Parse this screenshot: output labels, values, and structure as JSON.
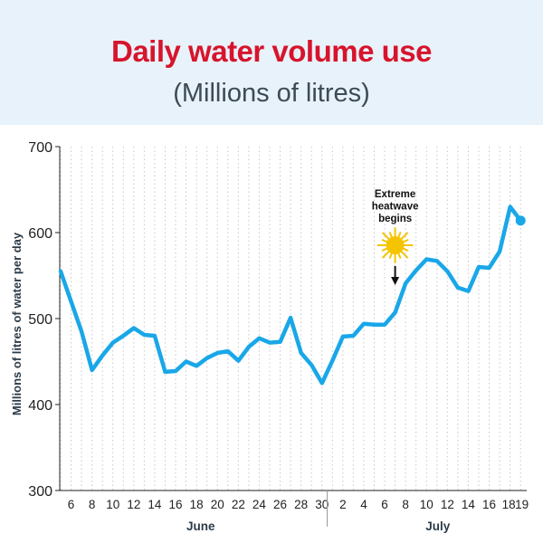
{
  "header": {
    "title": "Daily water volume use",
    "subtitle": "(Millions of litres)"
  },
  "colors": {
    "title": "#d7142c",
    "header_background": "#e8f2fa",
    "line": "#19a7e8",
    "grid": "#c8c8c8",
    "sun": "#f5c400",
    "subtitle": "#3d4b56"
  },
  "chart_data": {
    "type": "line",
    "title": "Daily water volume use",
    "subtitle": "(Millions of litres)",
    "ylabel": "Millions of litres of water per day",
    "xlabel": "",
    "ylim": [
      300,
      700
    ],
    "yticks": [
      300,
      400,
      500,
      600,
      700
    ],
    "grid": "vertical dotted lines at each day",
    "x_start": "June 5",
    "x_end": "July 19",
    "x_tick_labels": [
      "6",
      "8",
      "10",
      "12",
      "14",
      "16",
      "18",
      "20",
      "22",
      "24",
      "26",
      "28",
      "30",
      "2",
      "4",
      "6",
      "8",
      "10",
      "12",
      "14",
      "16",
      "18",
      "19"
    ],
    "months": [
      "June",
      "July"
    ],
    "series": [
      {
        "name": "",
        "x": [
          "Jun 5",
          "Jun 6",
          "Jun 7",
          "Jun 8",
          "Jun 9",
          "Jun 10",
          "Jun 11",
          "Jun 12",
          "Jun 13",
          "Jun 14",
          "Jun 15",
          "Jun 16",
          "Jun 17",
          "Jun 18",
          "Jun 19",
          "Jun 20",
          "Jun 21",
          "Jun 22",
          "Jun 23",
          "Jun 24",
          "Jun 25",
          "Jun 26",
          "Jun 27",
          "Jun 28",
          "Jun 29",
          "Jun 30",
          "Jul 1",
          "Jul 2",
          "Jul 3",
          "Jul 4",
          "Jul 5",
          "Jul 6",
          "Jul 7",
          "Jul 8",
          "Jul 9",
          "Jul 10",
          "Jul 11",
          "Jul 12",
          "Jul 13",
          "Jul 14",
          "Jul 15",
          "Jul 16",
          "Jul 17",
          "Jul 18",
          "Jul 19"
        ],
        "values": [
          555,
          520,
          485,
          440,
          457,
          472,
          480,
          489,
          481,
          480,
          438,
          439,
          450,
          445,
          454,
          460,
          462,
          451,
          467,
          477,
          472,
          473,
          501,
          460,
          446,
          425,
          451,
          479,
          480,
          494,
          493,
          493,
          507,
          541,
          556,
          569,
          567,
          555,
          536,
          532,
          560,
          559,
          578,
          630,
          614
        ]
      }
    ],
    "annotations": [
      {
        "text": "Extreme heatwave begins",
        "x": "Jul 7",
        "marker": "sun with downward arrow"
      }
    ]
  }
}
